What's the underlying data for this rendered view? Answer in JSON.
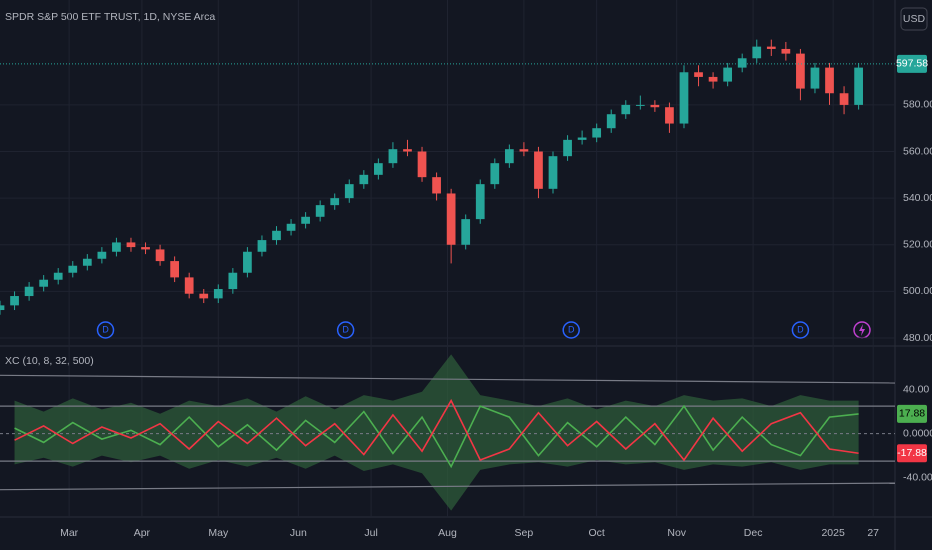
{
  "chart_data": [
    {
      "type": "candlestick",
      "title": "SPDR S&P 500 ETF TRUST, 1D, NYSE Arca",
      "currency": "USD",
      "up_color": "#26a69a",
      "down_color": "#ef5350",
      "grid": true,
      "x": [
        0,
        4,
        8,
        12,
        16,
        20,
        24,
        28,
        32,
        36,
        40,
        44,
        48,
        52,
        56,
        60,
        64,
        68,
        72,
        76,
        80,
        84,
        88,
        92,
        96,
        100,
        104,
        108,
        112,
        116,
        120,
        124,
        128,
        132,
        136,
        140,
        144,
        148,
        152,
        156,
        160,
        164,
        168,
        172,
        176,
        180,
        184,
        188,
        192,
        196,
        200,
        204,
        208,
        212,
        216,
        220,
        224,
        228,
        232,
        236
      ],
      "open": [
        492,
        494,
        498,
        502,
        505,
        508,
        511,
        514,
        517,
        521,
        519,
        518,
        513,
        506,
        499,
        497,
        501,
        508,
        517,
        522,
        526,
        529,
        532,
        537,
        540,
        546,
        550,
        555,
        561,
        560,
        549,
        542,
        520,
        531,
        546,
        555,
        561,
        560,
        544,
        558,
        565,
        566,
        570,
        576,
        580,
        580,
        579,
        572,
        594,
        592,
        590,
        596,
        600,
        605,
        604,
        602,
        587,
        596,
        585,
        580
      ],
      "high": [
        496,
        500,
        504,
        507,
        510,
        513,
        516,
        519,
        523,
        523,
        521,
        520,
        515,
        508,
        501,
        503,
        510,
        519,
        524,
        528,
        531,
        534,
        539,
        542,
        548,
        552,
        557,
        564,
        565,
        562,
        551,
        544,
        533,
        548,
        557,
        563,
        564,
        562,
        560,
        567,
        569,
        572,
        578,
        582,
        584,
        582,
        581,
        597,
        597,
        594,
        598,
        602,
        608,
        608,
        607,
        604,
        598,
        598,
        588,
        598
      ],
      "low": [
        490,
        492,
        496,
        500,
        503,
        506,
        509,
        512,
        515,
        517,
        516,
        511,
        504,
        497,
        495,
        495,
        499,
        506,
        515,
        520,
        524,
        527,
        530,
        535,
        538,
        544,
        548,
        553,
        558,
        547,
        539,
        512,
        518,
        529,
        544,
        553,
        558,
        540,
        542,
        556,
        563,
        564,
        568,
        574,
        578,
        577,
        568,
        570,
        588,
        587,
        588,
        594,
        598,
        601,
        599,
        582,
        585,
        580,
        576,
        578
      ],
      "close": [
        494,
        498,
        502,
        505,
        508,
        511,
        514,
        517,
        521,
        519,
        518,
        513,
        506,
        499,
        497,
        501,
        508,
        517,
        522,
        526,
        529,
        532,
        537,
        540,
        546,
        550,
        555,
        561,
        560,
        549,
        542,
        520,
        531,
        546,
        555,
        561,
        560,
        544,
        558,
        565,
        566,
        570,
        576,
        580,
        580,
        579,
        572,
        594,
        592,
        590,
        596,
        600,
        605,
        604,
        602,
        587,
        596,
        585,
        580,
        596
      ],
      "last_price": 597.58,
      "last_color": "#26a69a",
      "events": [
        {
          "x": 29,
          "label": "D"
        },
        {
          "x": 95,
          "label": "D"
        },
        {
          "x": 157,
          "label": "D"
        },
        {
          "x": 220,
          "label": "D"
        }
      ],
      "xlim": [
        0,
        246
      ],
      "ylim": [
        477,
        625
      ],
      "yticks": [
        {
          "value": 480,
          "label": "480.00"
        },
        {
          "value": 500,
          "label": "500.00"
        },
        {
          "value": 520,
          "label": "520.00"
        },
        {
          "value": 540,
          "label": "540.00"
        },
        {
          "value": 560,
          "label": "560.00"
        },
        {
          "value": 580,
          "label": "580.00"
        }
      ],
      "xticks": [
        {
          "value": 19,
          "label": "Mar"
        },
        {
          "value": 39,
          "label": "Apr"
        },
        {
          "value": 60,
          "label": "May"
        },
        {
          "value": 82,
          "label": "Jun"
        },
        {
          "value": 102,
          "label": "Jul"
        },
        {
          "value": 123,
          "label": "Aug"
        },
        {
          "value": 144,
          "label": "Sep"
        },
        {
          "value": 164,
          "label": "Oct"
        },
        {
          "value": 186,
          "label": "Nov"
        },
        {
          "value": 207,
          "label": "Dec"
        },
        {
          "value": 229,
          "label": "2025"
        },
        {
          "value": 240,
          "label": "27"
        }
      ]
    },
    {
      "type": "line",
      "title": "XC (10, 8, 32, 500)",
      "xlim": [
        0,
        246
      ],
      "ylim": [
        -74,
        76
      ],
      "x": [
        4,
        12,
        20,
        28,
        36,
        44,
        52,
        60,
        68,
        76,
        84,
        92,
        100,
        108,
        116,
        124,
        132,
        140,
        148,
        156,
        164,
        172,
        180,
        188,
        196,
        204,
        212,
        220,
        228,
        236
      ],
      "series": [
        {
          "color": "#4caf50",
          "values": [
            5,
            -8,
            10,
            -5,
            3,
            -10,
            15,
            -12,
            8,
            -15,
            12,
            -8,
            20,
            -18,
            15,
            -30,
            25,
            15,
            -20,
            10,
            -12,
            15,
            -10,
            25,
            -15,
            15,
            -10,
            -20,
            15,
            17.88
          ]
        },
        {
          "color": "#f23645",
          "values": [
            -6,
            7,
            -9,
            6,
            -4,
            9,
            -14,
            11,
            -9,
            14,
            -11,
            9,
            -19,
            17,
            -16,
            30,
            -24,
            -14,
            19,
            -11,
            11,
            -14,
            9,
            -24,
            14,
            -16,
            9,
            19,
            -14,
            -17.88
          ]
        }
      ],
      "envelope": {
        "color": "#2f5f3a",
        "upper": [
          30,
          20,
          32,
          22,
          28,
          18,
          30,
          25,
          32,
          20,
          34,
          22,
          35,
          30,
          38,
          72,
          35,
          30,
          25,
          32,
          22,
          30,
          25,
          35,
          30,
          32,
          25,
          35,
          30,
          30
        ],
        "lower": [
          -28,
          -22,
          -30,
          -20,
          -26,
          -20,
          -32,
          -24,
          -30,
          -22,
          -32,
          -20,
          -34,
          -28,
          -36,
          -70,
          -33,
          -28,
          -26,
          -30,
          -24,
          -28,
          -26,
          -33,
          -28,
          -30,
          -26,
          -33,
          -28,
          -28
        ]
      },
      "bands": [
        {
          "x": [
            0,
            246
          ],
          "values": [
            53,
            46
          ]
        },
        {
          "x": [
            0,
            246
          ],
          "values": [
            25,
            25
          ]
        },
        {
          "x": [
            0,
            246
          ],
          "values": [
            -25,
            -25
          ]
        },
        {
          "x": [
            0,
            246
          ],
          "values": [
            -51,
            -45
          ]
        }
      ],
      "zero": 0,
      "yticks": [
        {
          "value": 40,
          "label": "40.00"
        },
        {
          "value": 0,
          "label": "0.0000"
        },
        {
          "value": -40,
          "label": "-40.00"
        }
      ]
    }
  ]
}
